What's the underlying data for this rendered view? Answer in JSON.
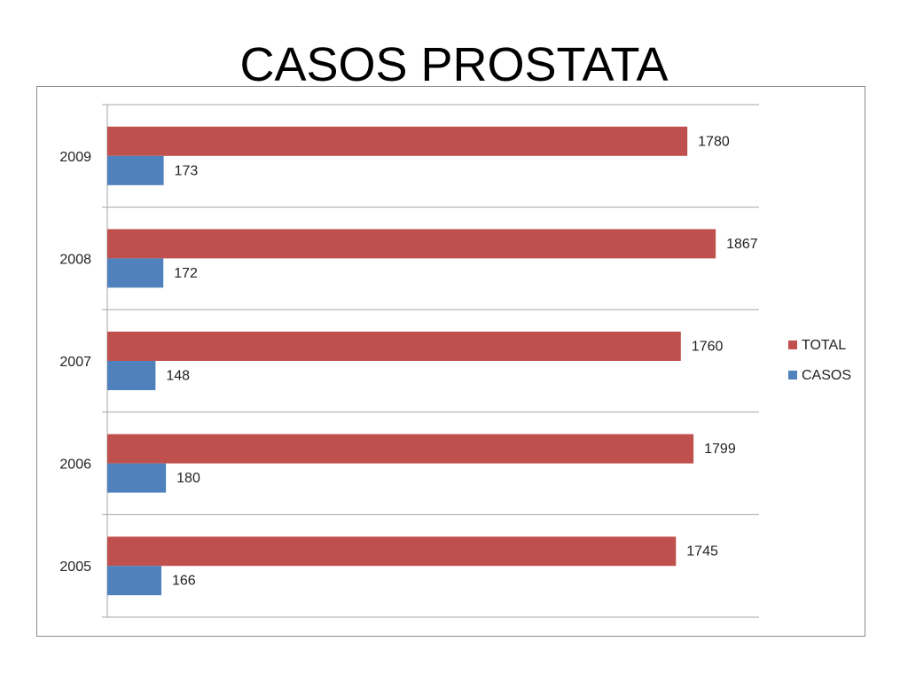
{
  "page": {
    "title": "CASOS PROSTATA"
  },
  "colors": {
    "total": "#c0504d",
    "casos": "#4f81bd",
    "grid": "#a6a6a6"
  },
  "chart_data": {
    "type": "bar",
    "orientation": "horizontal",
    "title": "CASOS PROSTATA",
    "categories": [
      "2009",
      "2008",
      "2007",
      "2006",
      "2005"
    ],
    "series": [
      {
        "name": "TOTAL",
        "values": [
          1780,
          1867,
          1760,
          1799,
          1745
        ]
      },
      {
        "name": "CASOS",
        "values": [
          173,
          172,
          148,
          180,
          166
        ]
      }
    ],
    "xlim": [
      0,
      2000
    ],
    "grid": true,
    "legend": "right"
  }
}
